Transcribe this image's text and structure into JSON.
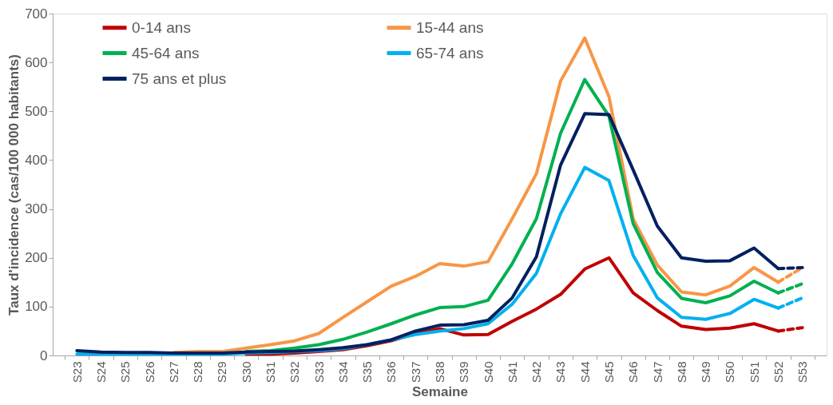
{
  "chart_data": {
    "type": "line",
    "xlabel": "Semaine",
    "ylabel": "Taux d'incidence (cas/100 000 habitants)",
    "categories": [
      "S23",
      "S24",
      "S25",
      "S26",
      "S27",
      "S28",
      "S29",
      "S30",
      "S31",
      "S32",
      "S33",
      "S34",
      "S35",
      "S36",
      "S37",
      "S38",
      "S39",
      "S40",
      "S41",
      "S42",
      "S43",
      "S44",
      "S45",
      "S46",
      "S47",
      "S48",
      "S49",
      "S50",
      "S51",
      "S52",
      "S53"
    ],
    "ylim": [
      0,
      700
    ],
    "yticks": [
      0,
      100,
      200,
      300,
      400,
      500,
      600,
      700
    ],
    "grid": false,
    "legend": "top left",
    "line_style": "solid",
    "marker": "none",
    "series": [
      {
        "name": "0-14 ans",
        "color": "#c00000",
        "values": [
          null,
          null,
          null,
          null,
          null,
          null,
          null,
          3,
          3,
          5,
          8,
          12,
          20,
          30,
          45,
          55,
          42,
          43,
          70,
          95,
          125,
          177,
          200,
          128,
          92,
          60,
          53,
          56,
          65,
          50,
          null
        ]
      },
      {
        "name": "15-44 ans",
        "color": "#f79646",
        "values": [
          null,
          null,
          null,
          null,
          6,
          8,
          8,
          15,
          22,
          30,
          45,
          78,
          110,
          142,
          162,
          188,
          183,
          192,
          280,
          372,
          562,
          650,
          530,
          280,
          185,
          130,
          124,
          142,
          180,
          150,
          null
        ]
      },
      {
        "name": "45-64 ans",
        "color": "#00b050",
        "values": [
          null,
          null,
          null,
          null,
          null,
          null,
          null,
          8,
          10,
          15,
          22,
          33,
          48,
          65,
          83,
          98,
          100,
          113,
          188,
          280,
          455,
          565,
          490,
          270,
          170,
          117,
          108,
          122,
          152,
          128,
          null
        ]
      },
      {
        "name": "65-74 ans",
        "color": "#00b0f0",
        "values": [
          3,
          3,
          3,
          3,
          3,
          3,
          3,
          5,
          6,
          8,
          10,
          14,
          22,
          32,
          43,
          50,
          55,
          65,
          105,
          168,
          290,
          385,
          358,
          205,
          118,
          78,
          74,
          86,
          115,
          97,
          null
        ]
      },
      {
        "name": "75 ans et plus",
        "color": "#002060",
        "values": [
          10,
          7,
          6,
          6,
          5,
          5,
          5,
          7,
          8,
          9,
          12,
          16,
          22,
          32,
          50,
          62,
          63,
          72,
          118,
          202,
          390,
          495,
          493,
          380,
          265,
          200,
          193,
          194,
          220,
          178,
          null
        ]
      },
      {
        "color": "#c00000",
        "line_style": "dashed",
        "values": [
          null,
          null,
          null,
          null,
          null,
          null,
          null,
          null,
          null,
          null,
          null,
          null,
          null,
          null,
          null,
          null,
          null,
          null,
          null,
          null,
          null,
          null,
          null,
          null,
          null,
          null,
          null,
          null,
          null,
          50,
          57
        ]
      },
      {
        "color": "#f79646",
        "line_style": "dashed",
        "values": [
          null,
          null,
          null,
          null,
          null,
          null,
          null,
          null,
          null,
          null,
          null,
          null,
          null,
          null,
          null,
          null,
          null,
          null,
          null,
          null,
          null,
          null,
          null,
          null,
          null,
          null,
          null,
          null,
          null,
          150,
          180
        ]
      },
      {
        "color": "#00b050",
        "line_style": "dashed",
        "values": [
          null,
          null,
          null,
          null,
          null,
          null,
          null,
          null,
          null,
          null,
          null,
          null,
          null,
          null,
          null,
          null,
          null,
          null,
          null,
          null,
          null,
          null,
          null,
          null,
          null,
          null,
          null,
          null,
          null,
          128,
          147
        ]
      },
      {
        "color": "#00b0f0",
        "line_style": "dashed",
        "values": [
          null,
          null,
          null,
          null,
          null,
          null,
          null,
          null,
          null,
          null,
          null,
          null,
          null,
          null,
          null,
          null,
          null,
          null,
          null,
          null,
          null,
          null,
          null,
          null,
          null,
          null,
          null,
          null,
          null,
          97,
          118
        ]
      },
      {
        "color": "#002060",
        "line_style": "dashed",
        "values": [
          null,
          null,
          null,
          null,
          null,
          null,
          null,
          null,
          null,
          null,
          null,
          null,
          null,
          null,
          null,
          null,
          null,
          null,
          null,
          null,
          null,
          null,
          null,
          null,
          null,
          null,
          null,
          null,
          null,
          178,
          180
        ]
      }
    ]
  }
}
